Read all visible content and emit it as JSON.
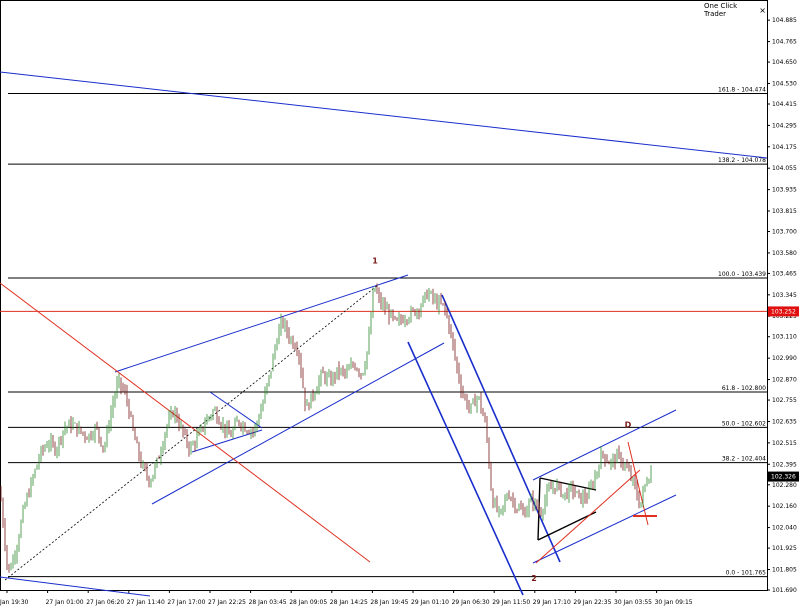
{
  "window": {
    "one_click_trader": "One Click Trader",
    "close_glyph": "×"
  },
  "colors": {
    "bull": "#2e8b2e",
    "bear": "#7a1a1a",
    "trend_blue": "#1a2ecc",
    "trend_red": "#e03020",
    "level_line": "#000000",
    "current_price_bg": "#000000",
    "alert_price_bg": "#e01010"
  },
  "chart_data": {
    "type": "candlestick",
    "price_axis": {
      "range": [
        101.69,
        104.97
      ],
      "ticks": [
        "104.885",
        "104.765",
        "104.650",
        "104.530",
        "104.415",
        "104.295",
        "104.175",
        "104.055",
        "103.935",
        "103.815",
        "103.700",
        "103.580",
        "103.465",
        "103.345",
        "103.225",
        "103.110",
        "102.990",
        "102.870",
        "102.755",
        "102.635",
        "102.515",
        "102.395",
        "102.280",
        "102.160",
        "102.040",
        "101.925",
        "101.805",
        "101.690"
      ]
    },
    "time_axis": {
      "labels": [
        "Jan 19:30",
        "27 Jan 01:00",
        "27 Jan 06:20",
        "27 Jan 11:40",
        "27 Jan 17:00",
        "27 Jan 22:25",
        "28 Jan 03:45",
        "28 Jan 09:05",
        "28 Jan 14:25",
        "28 Jan 19:45",
        "29 Jan 01:10",
        "29 Jan 06:30",
        "29 Jan 11:50",
        "29 Jan 17:10",
        "29 Jan 22:35",
        "30 Jan 03:55",
        "30 Jan 09:15"
      ]
    },
    "fib_levels": [
      {
        "label": "161.8 - 104.474",
        "value": 104.474
      },
      {
        "label": "138.2 - 104.078",
        "value": 104.078
      },
      {
        "label": "100.0 - 103.439",
        "value": 103.439
      },
      {
        "label": "61.8 - 102.800",
        "value": 102.8
      },
      {
        "label": "50.0 - 102.602",
        "value": 102.602
      },
      {
        "label": "38.2 - 102.404",
        "value": 102.404
      },
      {
        "label": "0.0 - 101.765",
        "value": 101.765
      }
    ],
    "price_tags": [
      {
        "label": "103.252",
        "value": 103.252,
        "style": "alert"
      },
      {
        "label": "102.326",
        "value": 102.326,
        "style": "current"
      }
    ],
    "wave_labels": [
      {
        "text": "1",
        "time": "28 Jan 21:00",
        "price": 103.52
      },
      {
        "text": "2",
        "time": "29 Jan 17:30",
        "price": 101.74
      },
      {
        "text": "D",
        "time": "30 Jan 05:30",
        "price": 102.6
      }
    ],
    "close_path": [
      [
        0,
        102.25
      ],
      [
        8,
        101.78
      ],
      [
        16,
        101.92
      ],
      [
        24,
        102.15
      ],
      [
        32,
        102.3
      ],
      [
        40,
        102.45
      ],
      [
        48,
        102.52
      ],
      [
        56,
        102.48
      ],
      [
        64,
        102.6
      ],
      [
        72,
        102.62
      ],
      [
        80,
        102.58
      ],
      [
        88,
        102.55
      ],
      [
        96,
        102.6
      ],
      [
        104,
        102.48
      ],
      [
        112,
        102.72
      ],
      [
        118,
        102.86
      ],
      [
        126,
        102.78
      ],
      [
        134,
        102.55
      ],
      [
        142,
        102.38
      ],
      [
        150,
        102.3
      ],
      [
        158,
        102.42
      ],
      [
        166,
        102.6
      ],
      [
        174,
        102.7
      ],
      [
        182,
        102.58
      ],
      [
        190,
        102.48
      ],
      [
        198,
        102.55
      ],
      [
        206,
        102.64
      ],
      [
        214,
        102.7
      ],
      [
        222,
        102.62
      ],
      [
        230,
        102.55
      ],
      [
        238,
        102.64
      ],
      [
        246,
        102.6
      ],
      [
        254,
        102.58
      ],
      [
        262,
        102.72
      ],
      [
        270,
        102.9
      ],
      [
        276,
        103.08
      ],
      [
        282,
        103.2
      ],
      [
        290,
        103.1
      ],
      [
        298,
        103.05
      ],
      [
        306,
        102.7
      ],
      [
        314,
        102.8
      ],
      [
        322,
        102.9
      ],
      [
        330,
        102.86
      ],
      [
        338,
        102.92
      ],
      [
        346,
        102.9
      ],
      [
        354,
        102.96
      ],
      [
        362,
        102.9
      ],
      [
        368,
        103.05
      ],
      [
        374,
        103.4
      ],
      [
        380,
        103.3
      ],
      [
        388,
        103.25
      ],
      [
        396,
        103.18
      ],
      [
        404,
        103.22
      ],
      [
        412,
        103.24
      ],
      [
        420,
        103.28
      ],
      [
        428,
        103.36
      ],
      [
        436,
        103.3
      ],
      [
        444,
        103.28
      ],
      [
        450,
        103.15
      ],
      [
        456,
        102.96
      ],
      [
        462,
        102.8
      ],
      [
        470,
        102.7
      ],
      [
        478,
        102.78
      ],
      [
        486,
        102.6
      ],
      [
        492,
        102.2
      ],
      [
        500,
        102.1
      ],
      [
        508,
        102.24
      ],
      [
        516,
        102.16
      ],
      [
        524,
        102.12
      ],
      [
        532,
        102.2
      ],
      [
        540,
        102.12
      ],
      [
        548,
        102.24
      ],
      [
        556,
        102.28
      ],
      [
        564,
        102.22
      ],
      [
        572,
        102.26
      ],
      [
        580,
        102.2
      ],
      [
        588,
        102.22
      ],
      [
        596,
        102.34
      ],
      [
        602,
        102.46
      ],
      [
        610,
        102.4
      ],
      [
        618,
        102.44
      ],
      [
        626,
        102.38
      ],
      [
        634,
        102.28
      ],
      [
        640,
        102.16
      ],
      [
        646,
        102.3
      ],
      [
        652,
        102.36
      ]
    ]
  }
}
